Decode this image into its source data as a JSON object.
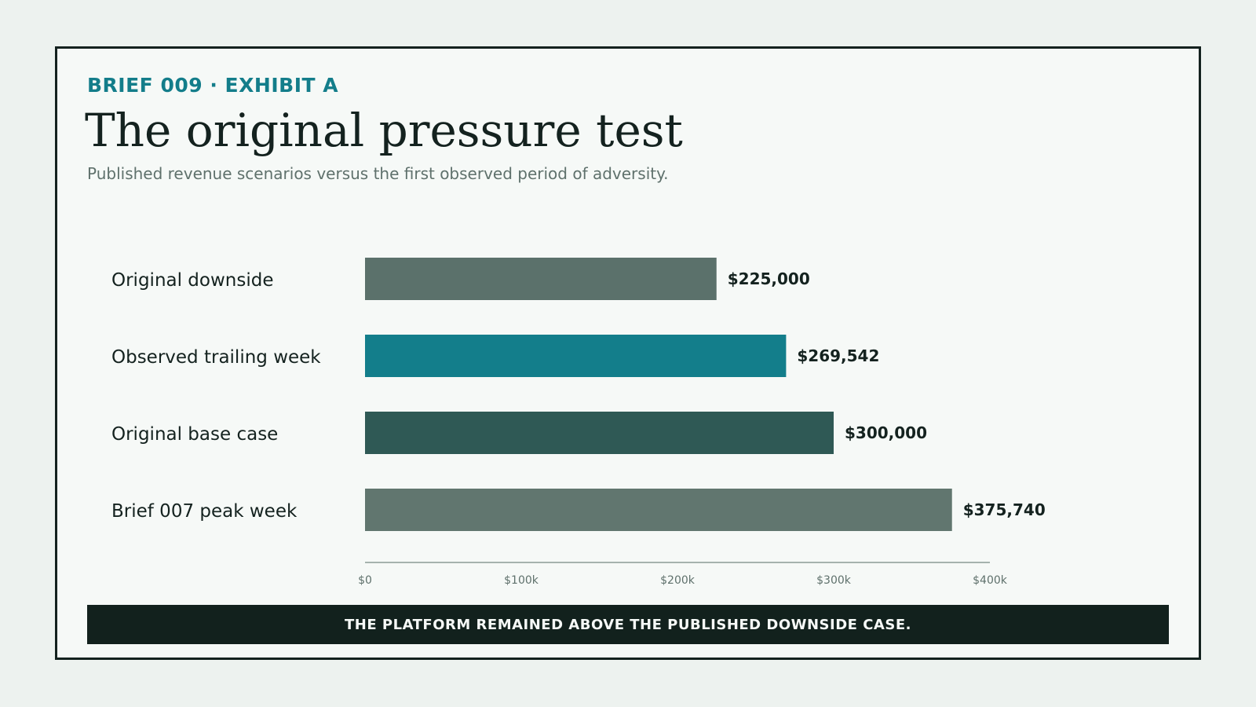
{
  "header": {
    "eyebrow": "BRIEF 009 · EXHIBIT A",
    "title": "The original pressure test",
    "subtitle": "Published revenue scenarios versus the first observed period of adversity."
  },
  "footer": {
    "banner": "THE PLATFORM REMAINED ABOVE THE PUBLISHED DOWNSIDE CASE."
  },
  "chart_data": {
    "type": "bar",
    "orientation": "horizontal",
    "title": "",
    "xlabel": "",
    "ylabel": "",
    "xlim": [
      0,
      400000
    ],
    "grid": false,
    "legend": "none",
    "categories": [
      "Original downside",
      "Observed trailing week",
      "Original base case",
      "Brief 007 peak week"
    ],
    "values": [
      225000,
      269542,
      300000,
      375740
    ],
    "value_labels": [
      "$225,000",
      "$269,542",
      "$300,000",
      "$375,740"
    ],
    "colors": [
      "#5b716b",
      "#137e8b",
      "#2f5955",
      "#61766f"
    ],
    "ticks": [
      0,
      100000,
      200000,
      300000,
      400000
    ],
    "tick_labels": [
      "$0",
      "$100k",
      "$200k",
      "$300k",
      "$400k"
    ]
  }
}
